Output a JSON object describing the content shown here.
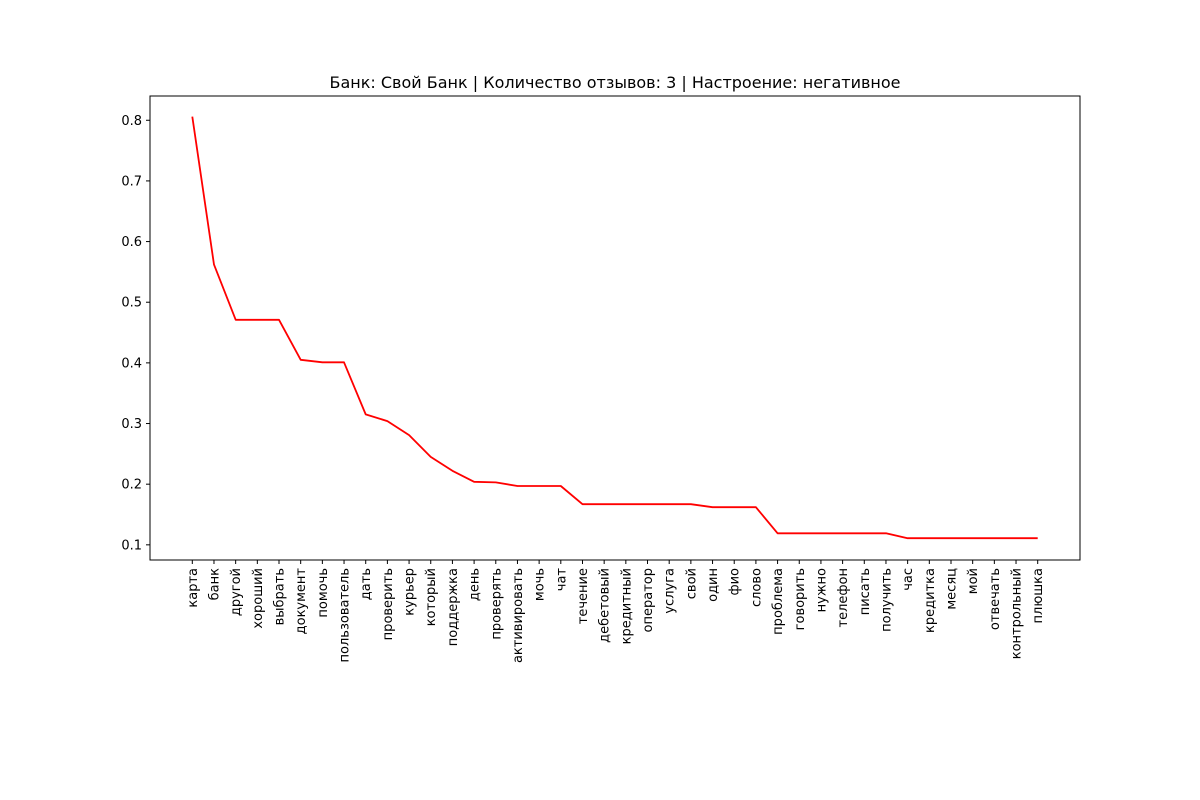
{
  "chart_data": {
    "type": "line",
    "title": "Банк: Свой Банк | Количество отзывов: 3 | Настроение: негативное",
    "xlabel": "",
    "ylabel": "",
    "ylim": [
      0.075,
      0.84
    ],
    "yticks": [
      "0.1",
      "0.2",
      "0.3",
      "0.4",
      "0.5",
      "0.6",
      "0.7",
      "0.8"
    ],
    "grid": false,
    "line_color": "#ff0000",
    "categories": [
      "карта",
      "банк",
      "другой",
      "хороший",
      "выбрать",
      "документ",
      "помочь",
      "пользователь",
      "дать",
      "проверить",
      "курьер",
      "который",
      "поддержка",
      "день",
      "проверять",
      "активировать",
      "мочь",
      "чат",
      "течение",
      "дебетовый",
      "кредитный",
      "оператор",
      "услуга",
      "свой",
      "один",
      "фио",
      "слово",
      "проблема",
      "говорить",
      "нужно",
      "телефон",
      "писать",
      "получить",
      "час",
      "кредитка",
      "месяц",
      "мой",
      "отвечать",
      "контрольный",
      "плюшка"
    ],
    "values": [
      0.806,
      0.562,
      0.471,
      0.471,
      0.471,
      0.405,
      0.401,
      0.401,
      0.315,
      0.304,
      0.281,
      0.245,
      0.222,
      0.204,
      0.203,
      0.197,
      0.197,
      0.197,
      0.167,
      0.167,
      0.167,
      0.167,
      0.167,
      0.167,
      0.162,
      0.162,
      0.162,
      0.119,
      0.119,
      0.119,
      0.119,
      0.119,
      0.119,
      0.111,
      0.111,
      0.111,
      0.111,
      0.111,
      0.111,
      0.111
    ]
  }
}
